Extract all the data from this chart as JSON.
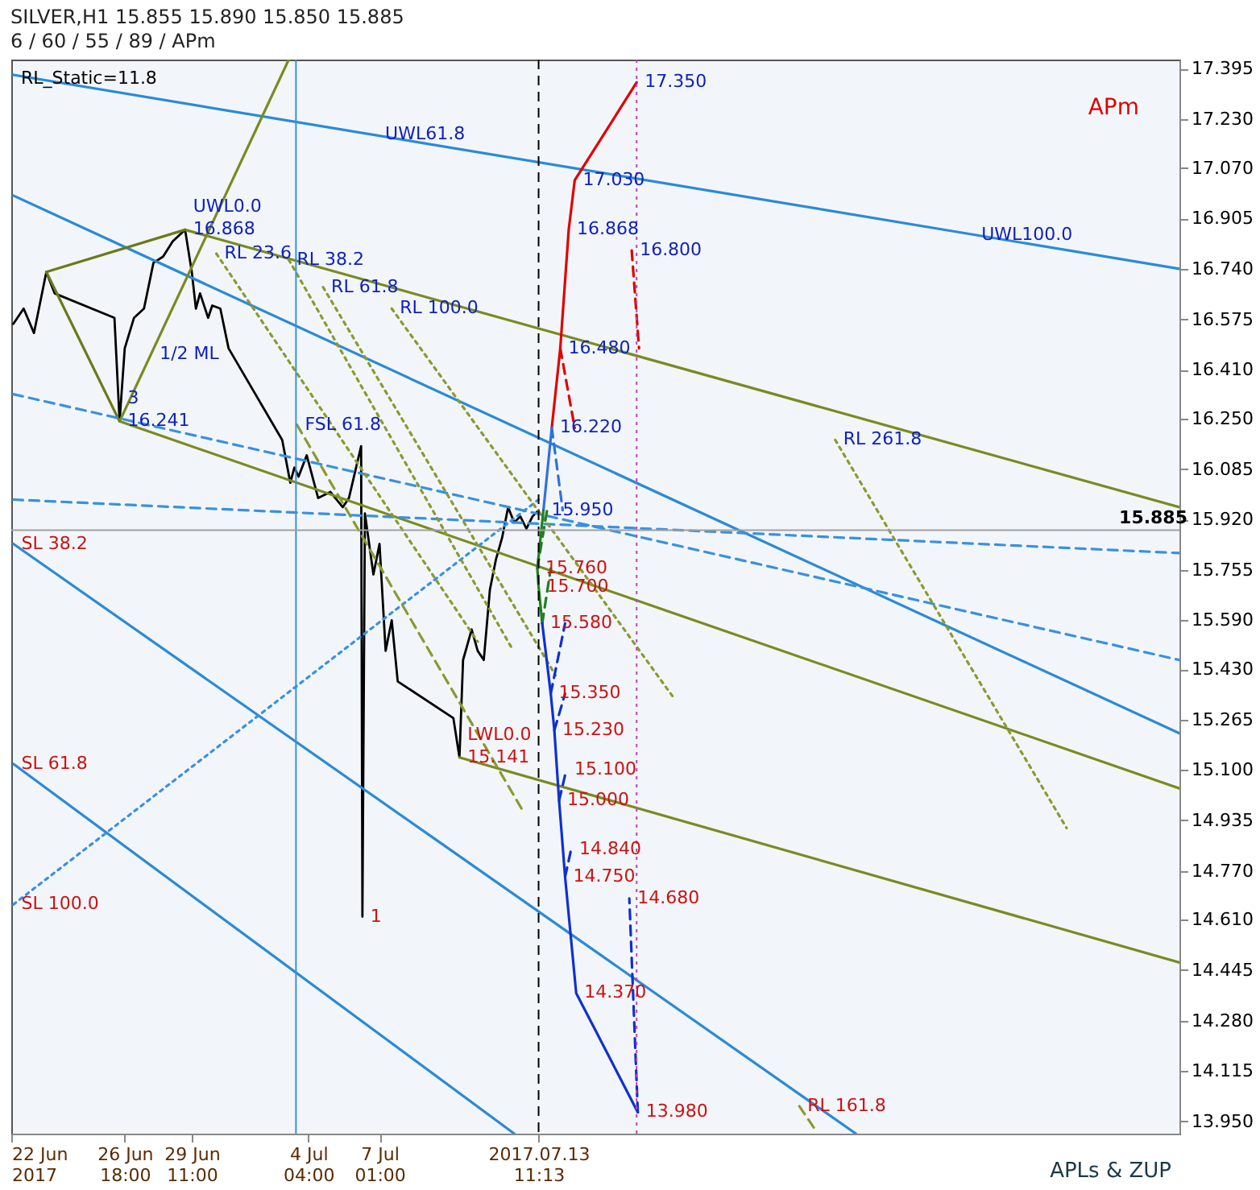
{
  "chart_data": {
    "type": "line",
    "title": "SILVER,H1  15.855 15.890 15.850 15.885",
    "subtitle": "6 / 60 / 55 / 89 / APm",
    "xlim": [
      "2017-06-22T04:00",
      "2017-08-08T08:30"
    ],
    "ylim": [
      13.91,
      17.425
    ],
    "xticks": [
      {
        "value": "2017-06-22T04:00",
        "label": "22 Jun 2017"
      },
      {
        "value": "2017-06-26T18:00",
        "label": "26 Jun 18:00"
      },
      {
        "value": "2017-06-29T11:00",
        "label": "29 Jun 11:00"
      },
      {
        "value": "2017-07-04T04:00",
        "label": "4 Jul 04:00"
      },
      {
        "value": "2017-07-07T01:00",
        "label": "7 Jul 01:00"
      },
      {
        "value": "2017-07-13T11:13",
        "label": "2017.07.13 11:13"
      }
    ],
    "yticks": [
      17.395,
      {
        "value": 17.23,
        "label": "17.230"
      },
      {
        "value": 17.07,
        "label": "17.070"
      },
      16.905,
      {
        "value": 16.74,
        "label": "16.740"
      },
      16.575,
      {
        "value": 16.41,
        "label": "16.410"
      },
      {
        "value": 16.25,
        "label": "16.250"
      },
      16.085,
      {
        "value": 15.92,
        "label": "15.920"
      },
      15.755,
      {
        "value": 15.59,
        "label": "15.590"
      },
      {
        "value": 15.43,
        "label": "15.430"
      },
      15.265,
      {
        "value": 15.1,
        "label": "15.100"
      },
      14.935,
      {
        "value": 14.77,
        "label": "14.770"
      },
      {
        "value": 14.61,
        "label": "14.610"
      },
      14.445,
      {
        "value": 14.28,
        "label": "14.280"
      },
      14.115,
      {
        "value": 13.95,
        "label": "13.950"
      }
    ],
    "grid": false,
    "marker": "none",
    "series": [
      {
        "color": "#000000",
        "line_style": "solid",
        "x": [
          "2017-06-22T06:00",
          "2017-06-22T16:00",
          "2017-06-23T02:00",
          "2017-06-23T14:00",
          "2017-06-23T22:00",
          "2017-06-26T08:00",
          "2017-06-26T13:00",
          "2017-06-26T18:00",
          "2017-06-27T03:00",
          "2017-06-27T12:40",
          "2017-06-27T21:50",
          "2017-06-28T07:10",
          "2017-06-28T16:30",
          "2017-06-29T04:30",
          "2017-06-29T11:00",
          "2017-06-29T15:00",
          "2017-06-29T19:00",
          "2017-06-30T02:50",
          "2017-06-30T06:50",
          "2017-06-30T14:40",
          "2017-06-30T22:40",
          "2017-07-03T02:40",
          "2017-07-03T06:35",
          "2017-07-03T10:30",
          "2017-07-03T14:30",
          "2017-07-03T18:30",
          "2017-07-04T02:25",
          "2017-07-04T13:30",
          "2017-07-05T01:25",
          "2017-07-05T13:20",
          "2017-07-05T19:20",
          "2017-07-06T07:10",
          "2017-07-06T08:25",
          "2017-07-06T10:50",
          "2017-07-06T19:05",
          "2017-07-07T01:00",
          "2017-07-07T06:55",
          "2017-07-07T12:50",
          "2017-07-07T18:40",
          "2017-07-10T00:35",
          "2017-07-10T06:30",
          "2017-07-10T10:00",
          "2017-07-10T18:20",
          "2017-07-11T00:10",
          "2017-07-11T06:05",
          "2017-07-11T12:00",
          "2017-07-11T17:55",
          "2017-07-11T23:50",
          "2017-07-12T05:40",
          "2017-07-12T11:35",
          "2017-07-12T17:30",
          "2017-07-12T23:25",
          "2017-07-13T05:20",
          "2017-07-13T11:13"
        ],
        "values": [
          16.56,
          16.61,
          16.53,
          16.73,
          16.66,
          16.58,
          16.241,
          16.48,
          16.58,
          16.61,
          16.76,
          16.78,
          16.83,
          16.868,
          16.73,
          16.61,
          16.66,
          16.58,
          16.62,
          16.61,
          16.48,
          16.18,
          16.11,
          16.04,
          16.09,
          16.06,
          16.13,
          15.99,
          16.01,
          15.96,
          15.99,
          16.16,
          14.62,
          15.94,
          15.74,
          15.84,
          15.49,
          15.59,
          15.39,
          15.27,
          15.141,
          15.46,
          15.56,
          15.49,
          15.46,
          15.69,
          15.79,
          15.86,
          15.96,
          15.91,
          15.93,
          15.89,
          15.93,
          15.95
        ]
      },
      {
        "color": "#2a8ad8",
        "line_style": "solid",
        "x": [
          "2017-06-22T06:00",
          "2017-08-08T08:30"
        ],
        "values": [
          17.375,
          16.74
        ]
      },
      {
        "color": "#2a8ad8",
        "line_style": "solid",
        "x": [
          "2017-06-22T06:00",
          "2017-08-08T08:30"
        ],
        "values": [
          16.98,
          15.22
        ]
      },
      {
        "color": "#7a8a20",
        "line_style": "solid",
        "x": [
          "2017-06-29T04:30",
          "2017-08-08T08:30"
        ],
        "values": [
          16.868,
          15.96
        ]
      },
      {
        "color": "#7a8a20",
        "line_style": "solid",
        "x": [
          "2017-06-26T13:00",
          "2017-08-08T08:30"
        ],
        "values": [
          16.241,
          15.04
        ]
      },
      {
        "color": "#7a8a20",
        "line_style": "solid",
        "x": [
          "2017-07-10T06:30",
          "2017-08-08T08:30"
        ],
        "values": [
          15.141,
          14.47
        ]
      },
      {
        "color": "#6b7a1a",
        "line_style": "solid",
        "x": [
          "2017-06-23T14:00",
          "2017-06-29T04:30"
        ],
        "values": [
          16.73,
          16.868
        ]
      },
      {
        "color": "#6b7a1a",
        "line_style": "solid",
        "x": [
          "2017-06-23T14:00",
          "2017-06-26T13:00"
        ],
        "values": [
          16.73,
          16.241
        ]
      },
      {
        "color": "#7a8a20",
        "line_style": "solid",
        "x": [
          "2017-06-26T13:00",
          "2017-07-03T09:00"
        ],
        "values": [
          16.241,
          17.425
        ]
      },
      {
        "color": "#3a90e0",
        "line_style": "dashed",
        "x": [
          "2017-06-22T06:00",
          "2017-08-08T08:30"
        ],
        "values": [
          16.33,
          15.46
        ]
      },
      {
        "color": "#3a90e0",
        "line_style": "dashed",
        "x": [
          "2017-06-22T06:00",
          "2017-08-08T08:30"
        ],
        "values": [
          15.985,
          15.81
        ]
      },
      {
        "color": "#2a8ad8",
        "line_style": "solid",
        "x": [
          "2017-06-22T06:00",
          "2017-07-26T06:45"
        ],
        "values": [
          15.84,
          13.91
        ]
      },
      {
        "color": "#2a8ad8",
        "line_style": "solid",
        "x": [
          "2017-06-22T06:00",
          "2017-07-12T11:35"
        ],
        "values": [
          15.12,
          13.91
        ]
      },
      {
        "color": "#3a90e0",
        "line_style": "dotted",
        "x": [
          "2017-06-22T06:00",
          "2017-07-13T11:13"
        ],
        "values": [
          14.66,
          15.985
        ]
      },
      {
        "color": "#8a9a30",
        "line_style": "dotted",
        "x": [
          "2017-06-30T10:50",
          "2017-07-11T00:10"
        ],
        "values": [
          16.79,
          15.52
        ]
      },
      {
        "color": "#8a9a30",
        "line_style": "dotted",
        "x": [
          "2017-07-03T09:00",
          "2017-07-12T09:05"
        ],
        "values": [
          16.77,
          15.5
        ]
      },
      {
        "color": "#8a9a30",
        "line_style": "dotted",
        "x": [
          "2017-07-04T18:20",
          "2017-07-14T03:40"
        ],
        "values": [
          16.68,
          15.41
        ]
      },
      {
        "color": "#8a9a30",
        "line_style": "dotted",
        "x": [
          "2017-07-07T12:50",
          "2017-07-18T21:25"
        ],
        "values": [
          16.61,
          15.34
        ]
      },
      {
        "color": "#8a9a30",
        "line_style": "dotted",
        "x": [
          "2017-07-25T10:50",
          "2017-08-03T19:10"
        ],
        "values": [
          16.18,
          14.91
        ]
      },
      {
        "color": "#8a9a30",
        "line_style": "dashed",
        "x": [
          "2017-07-03T16:55",
          "2017-07-12T21:05"
        ],
        "values": [
          16.23,
          14.96
        ]
      },
      {
        "color": "#8a9a30",
        "line_style": "dashed",
        "x": [
          "2017-07-24T00:00",
          "2017-07-24T16:00"
        ],
        "values": [
          14.0,
          13.92
        ]
      },
      {
        "color": "#e00000",
        "line_style": "solid",
        "x": [
          "2017-07-14T00:00",
          "2017-07-14T08:15",
          "2017-07-14T16:25",
          "2017-07-14T22:15",
          "2017-07-17T10:15"
        ],
        "values": [
          16.22,
          16.48,
          16.868,
          17.03,
          17.35
        ]
      },
      {
        "color": "#e00000",
        "line_style": "dashed",
        "x": [
          "2017-07-17T05:30",
          "2017-07-17T12:35"
        ],
        "values": [
          16.8,
          16.48
        ]
      },
      {
        "color": "#e00000",
        "line_style": "dashed",
        "x": [
          "2017-07-14T08:15",
          "2017-07-14T22:15"
        ],
        "values": [
          16.48,
          16.22
        ]
      },
      {
        "color": "#3070e0",
        "line_style": "solid",
        "x": [
          "2017-07-13T15:55",
          "2017-07-14T00:00"
        ],
        "values": [
          15.95,
          16.22
        ]
      },
      {
        "color": "#3070e0",
        "line_style": "dashed",
        "x": [
          "2017-07-14T00:00",
          "2017-07-14T10:35"
        ],
        "values": [
          16.22,
          15.95
        ]
      },
      {
        "color": "#208020",
        "line_style": "solid",
        "x": [
          "2017-07-13T15:55",
          "2017-07-13T10:00",
          "2017-07-13T11:13",
          "2017-07-13T14:45"
        ],
        "values": [
          15.95,
          15.76,
          15.7,
          15.58
        ]
      },
      {
        "color": "#208020",
        "line_style": "dashed",
        "x": [
          "2017-07-13T10:00",
          "2017-07-13T19:25"
        ],
        "values": [
          15.76,
          15.95
        ]
      },
      {
        "color": "#208020",
        "line_style": "dashed",
        "x": [
          "2017-07-13T14:45",
          "2017-07-13T23:00"
        ],
        "values": [
          15.58,
          15.76
        ]
      },
      {
        "color": "#1030d0",
        "line_style": "solid",
        "x": [
          "2017-07-13T14:45",
          "2017-07-13T23:00",
          "2017-07-14T02:30",
          "2017-07-14T07:05",
          "2017-07-14T12:55",
          "2017-07-14T23:40",
          "2017-07-17T11:25"
        ],
        "values": [
          15.58,
          15.35,
          15.23,
          15.0,
          14.75,
          14.37,
          13.98
        ]
      },
      {
        "color": "#1030d0",
        "line_style": "dashed",
        "x": [
          "2017-07-13T23:00",
          "2017-07-14T12:55"
        ],
        "values": [
          15.35,
          15.58
        ]
      },
      {
        "color": "#1030d0",
        "line_style": "dashed",
        "x": [
          "2017-07-14T02:30",
          "2017-07-14T12:55"
        ],
        "values": [
          15.23,
          15.35
        ]
      },
      {
        "color": "#1030d0",
        "line_style": "dashed",
        "x": [
          "2017-07-14T07:05",
          "2017-07-14T14:05"
        ],
        "values": [
          15.0,
          15.1
        ]
      },
      {
        "color": "#1030d0",
        "line_style": "dashed",
        "x": [
          "2017-07-14T12:55",
          "2017-07-14T18:45"
        ],
        "values": [
          14.75,
          14.84
        ]
      },
      {
        "color": "#1030d0",
        "line_style": "dashed",
        "x": [
          "2017-07-17T11:25",
          "2017-07-17T03:10"
        ],
        "values": [
          13.98,
          14.68
        ]
      }
    ],
    "ref_lines": [
      {
        "axis": "x",
        "value": "2017-07-13T11:13",
        "color": "#000000",
        "line_style": "dashed"
      },
      {
        "axis": "x",
        "value": "2017-07-17T10:15",
        "color": "#c040c0",
        "line_style": "dotted"
      },
      {
        "axis": "x",
        "value": "2017-07-03T16:00",
        "color": "#3a90e0",
        "line_style": "solid"
      },
      {
        "axis": "y",
        "value": 15.885,
        "color": "#a0a0a0",
        "line_style": "solid",
        "label": "15.885"
      }
    ],
    "annotations": [
      "RL_Static=11.8",
      "APm",
      "APLs & ZUP",
      {
        "text": "17.350",
        "x": "2017-07-17T10:15",
        "y": 17.35
      },
      {
        "text": "17.030",
        "x": "2017-07-14T22:15",
        "y": 17.03
      },
      {
        "text": "16.868",
        "x": "2017-07-14T16:25",
        "y": 16.868
      },
      {
        "text": "16.800",
        "x": "2017-07-17T05:30",
        "y": 16.8
      },
      {
        "text": "16.480",
        "x": "2017-07-14T08:15",
        "y": 16.48
      },
      {
        "text": "16.220",
        "x": "2017-07-14T00:00",
        "y": 16.22
      },
      {
        "text": "15.950",
        "x": "2017-07-13T15:55",
        "y": 15.95
      },
      {
        "text": "15.760",
        "x": "2017-07-13T10:00",
        "y": 15.76
      },
      {
        "text": "15.700",
        "x": "2017-07-13T11:13",
        "y": 15.7
      },
      {
        "text": "15.580",
        "x": "2017-07-13T14:45",
        "y": 15.58
      },
      {
        "text": "15.350",
        "x": "2017-07-13T23:00",
        "y": 15.35
      },
      {
        "text": "15.230",
        "x": "2017-07-14T02:30",
        "y": 15.23
      },
      {
        "text": "15.100",
        "x": "2017-07-14T14:05",
        "y": 15.1
      },
      {
        "text": "15.000",
        "x": "2017-07-14T07:05",
        "y": 15.0
      },
      {
        "text": "14.840",
        "x": "2017-07-14T18:45",
        "y": 14.84
      },
      {
        "text": "14.750",
        "x": "2017-07-14T12:55",
        "y": 14.75
      },
      {
        "text": "14.680",
        "x": "2017-07-17T03:10",
        "y": 14.68
      },
      {
        "text": "14.370",
        "x": "2017-07-14T23:40",
        "y": 14.37
      },
      {
        "text": "13.980",
        "x": "2017-07-17T11:25",
        "y": 13.98
      },
      {
        "text": "16.868",
        "x": "2017-06-29T04:30",
        "y": 16.868
      },
      {
        "text": "UWL0.0",
        "x": "2017-06-29T04:30",
        "y": 16.868
      },
      {
        "text": "16.241",
        "x": "2017-06-26T13:00",
        "y": 16.241
      },
      {
        "text": "3",
        "x": "2017-06-26T13:00",
        "y": 16.241
      },
      {
        "text": "15.141",
        "x": "2017-07-10T06:30",
        "y": 15.141
      },
      {
        "text": "LWL0.0",
        "x": "2017-07-10T06:30",
        "y": 15.141
      },
      {
        "text": "1",
        "x": "2017-07-06T08:25",
        "y": 14.62
      },
      {
        "text": "UWL61.8",
        "x": "2017-07-06T22:40",
        "y": 17.18
      },
      {
        "text": "UWL100.0",
        "x": "2017-07-31T00:40",
        "y": 16.85
      },
      {
        "text": "1/2 ML",
        "x": "2017-06-27T20:00",
        "y": 16.46
      },
      {
        "text": "RL 23.6",
        "x": "2017-06-30T10:50",
        "y": 16.79
      },
      {
        "text": "RL 38.2",
        "x": "2017-07-03T09:00",
        "y": 16.77
      },
      {
        "text": "RL 61.8",
        "x": "2017-07-04T18:20",
        "y": 16.68
      },
      {
        "text": "RL 100.0",
        "x": "2017-07-07T12:50",
        "y": 16.61
      },
      {
        "text": "RL 261.8",
        "x": "2017-07-25T10:50",
        "y": 16.18
      },
      {
        "text": "FSL 61.8",
        "x": "2017-07-03T16:55",
        "y": 16.23
      },
      {
        "text": "RL 161.8",
        "x": "2017-07-24T00:00",
        "y": 14.0
      },
      {
        "text": "SL 38.2",
        "x": "2017-06-22T06:00",
        "y": 15.84
      },
      {
        "text": "SL 61.8",
        "x": "2017-06-22T06:00",
        "y": 15.12
      },
      {
        "text": "SL 100.0",
        "x": "2017-06-22T06:00",
        "y": 14.66
      }
    ]
  }
}
